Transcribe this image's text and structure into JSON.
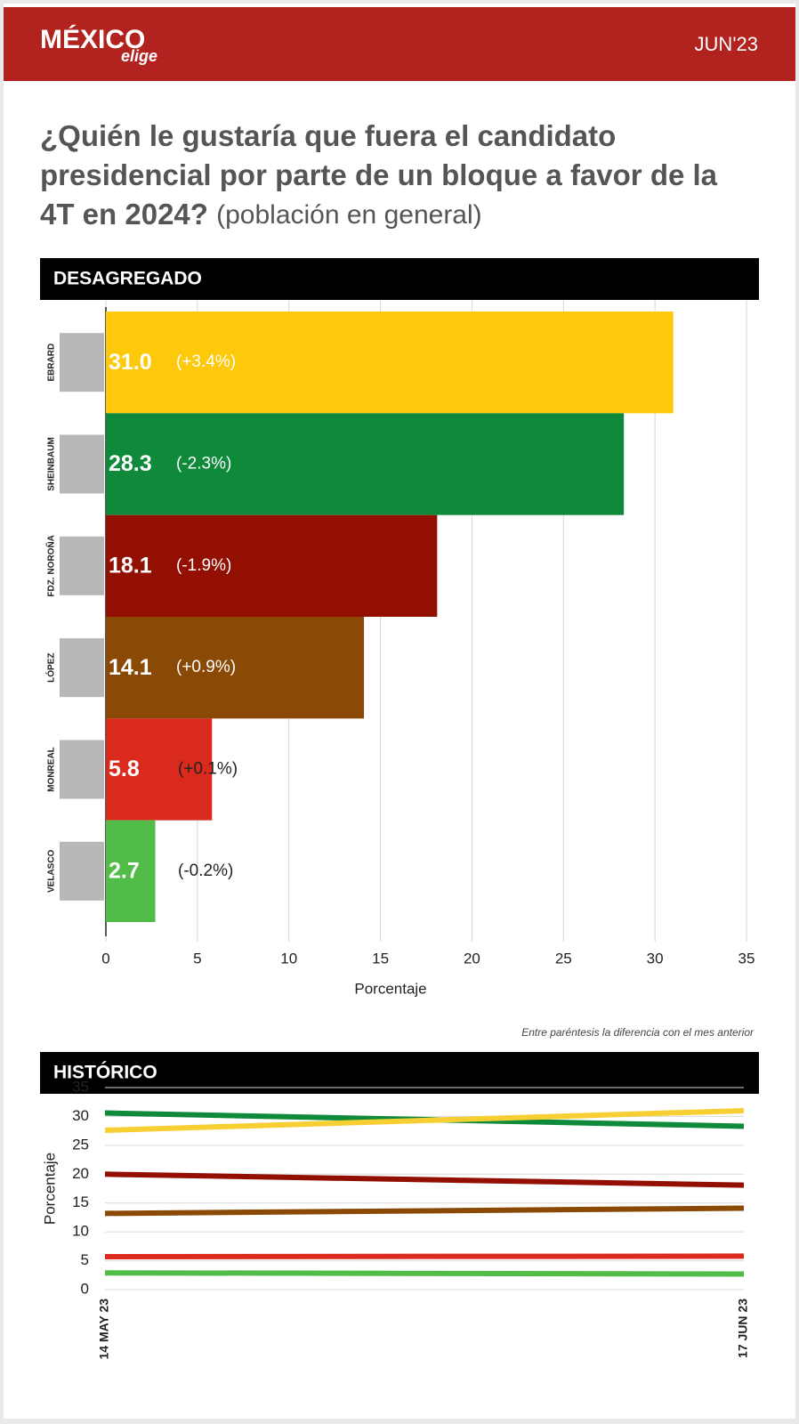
{
  "header": {
    "logo_main": "MÉXICO",
    "logo_sub": "elige",
    "date": "JUN'23"
  },
  "title": "¿Quién le gustaría que fuera el candidato presidencial por parte de un bloque a favor de la 4T en 2024?",
  "subtitle": "(población en general)",
  "note": "Entre paréntesis la diferencia con el mes anterior",
  "chart_data": [
    {
      "type": "bar",
      "horizontal": true,
      "title": "DESAGREGADO",
      "categories": [
        "EBRARD",
        "SHEINBAUM",
        "FDZ. NOROÑA",
        "LÓPEZ",
        "MONREAL",
        "VELASCO"
      ],
      "values": [
        31.0,
        28.3,
        18.1,
        14.1,
        5.8,
        2.7
      ],
      "value_labels": [
        "31.0",
        "28.3",
        "18.1",
        "14.1",
        "5.8",
        "2.7"
      ],
      "change_labels": [
        "(+3.4%)",
        "(-2.3%)",
        "(-1.9%)",
        "(+0.9%)",
        "(+0.1%)",
        "(-0.2%)"
      ],
      "colors": [
        "#fdc90a",
        "#0f8a3a",
        "#930f02",
        "#8a4a06",
        "#d92a1d",
        "#52bc48"
      ],
      "xlabel": "Porcentaje",
      "xlim": [
        0,
        35
      ],
      "xticks": [
        0,
        5,
        10,
        15,
        20,
        25,
        30,
        35
      ],
      "grid": true
    },
    {
      "type": "line",
      "title": "HISTÓRICO",
      "x": [
        "14 MAY 23",
        "17 JUN 23"
      ],
      "series": [
        {
          "color": "#0f8a3a",
          "values": [
            30.6,
            28.3
          ]
        },
        {
          "color": "#f7cf33",
          "values": [
            27.6,
            31.0
          ]
        },
        {
          "color": "#930f02",
          "values": [
            20.0,
            18.1
          ]
        },
        {
          "color": "#8a4a06",
          "values": [
            13.2,
            14.1
          ]
        },
        {
          "color": "#d92a1d",
          "values": [
            5.7,
            5.8
          ]
        },
        {
          "color": "#52bc48",
          "values": [
            2.9,
            2.7
          ]
        }
      ],
      "ylabel": "Porcentaje",
      "ylim": [
        0,
        35
      ],
      "yticks": [
        0,
        5,
        10,
        15,
        20,
        25,
        30,
        35
      ],
      "grid": true
    }
  ]
}
